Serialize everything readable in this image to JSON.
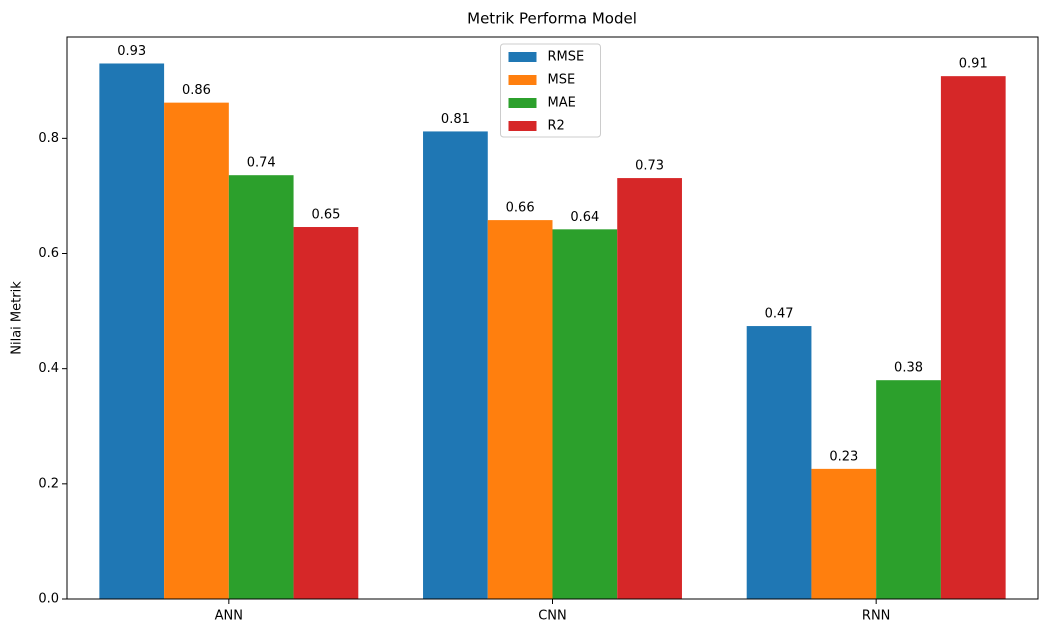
{
  "chart_data": {
    "type": "bar",
    "title": "Metrik Performa Model",
    "ylabel": "Nilai Metrik",
    "categories": [
      "ANN",
      "CNN",
      "RNN"
    ],
    "series": [
      {
        "name": "RMSE",
        "color": "#1f77b4",
        "values": [
          0.93,
          0.812,
          0.474
        ],
        "value_labels": [
          "0.93",
          "0.81",
          "0.47"
        ]
      },
      {
        "name": "MSE",
        "color": "#ff7f0e",
        "values": [
          0.862,
          0.658,
          0.226
        ],
        "value_labels": [
          "0.86",
          "0.66",
          "0.23"
        ]
      },
      {
        "name": "MAE",
        "color": "#2ca02c",
        "values": [
          0.736,
          0.642,
          0.38
        ],
        "value_labels": [
          "0.74",
          "0.64",
          "0.38"
        ]
      },
      {
        "name": "R2",
        "color": "#d62728",
        "values": [
          0.646,
          0.731,
          0.908
        ],
        "value_labels": [
          "0.65",
          "0.73",
          "0.91"
        ]
      }
    ],
    "ylim": [
      0,
      0.976
    ],
    "yticks": [
      {
        "value": 0,
        "label": "0.0"
      },
      0.2,
      0.4,
      0.6,
      0.8
    ],
    "legend": "upper center",
    "grid": false
  }
}
